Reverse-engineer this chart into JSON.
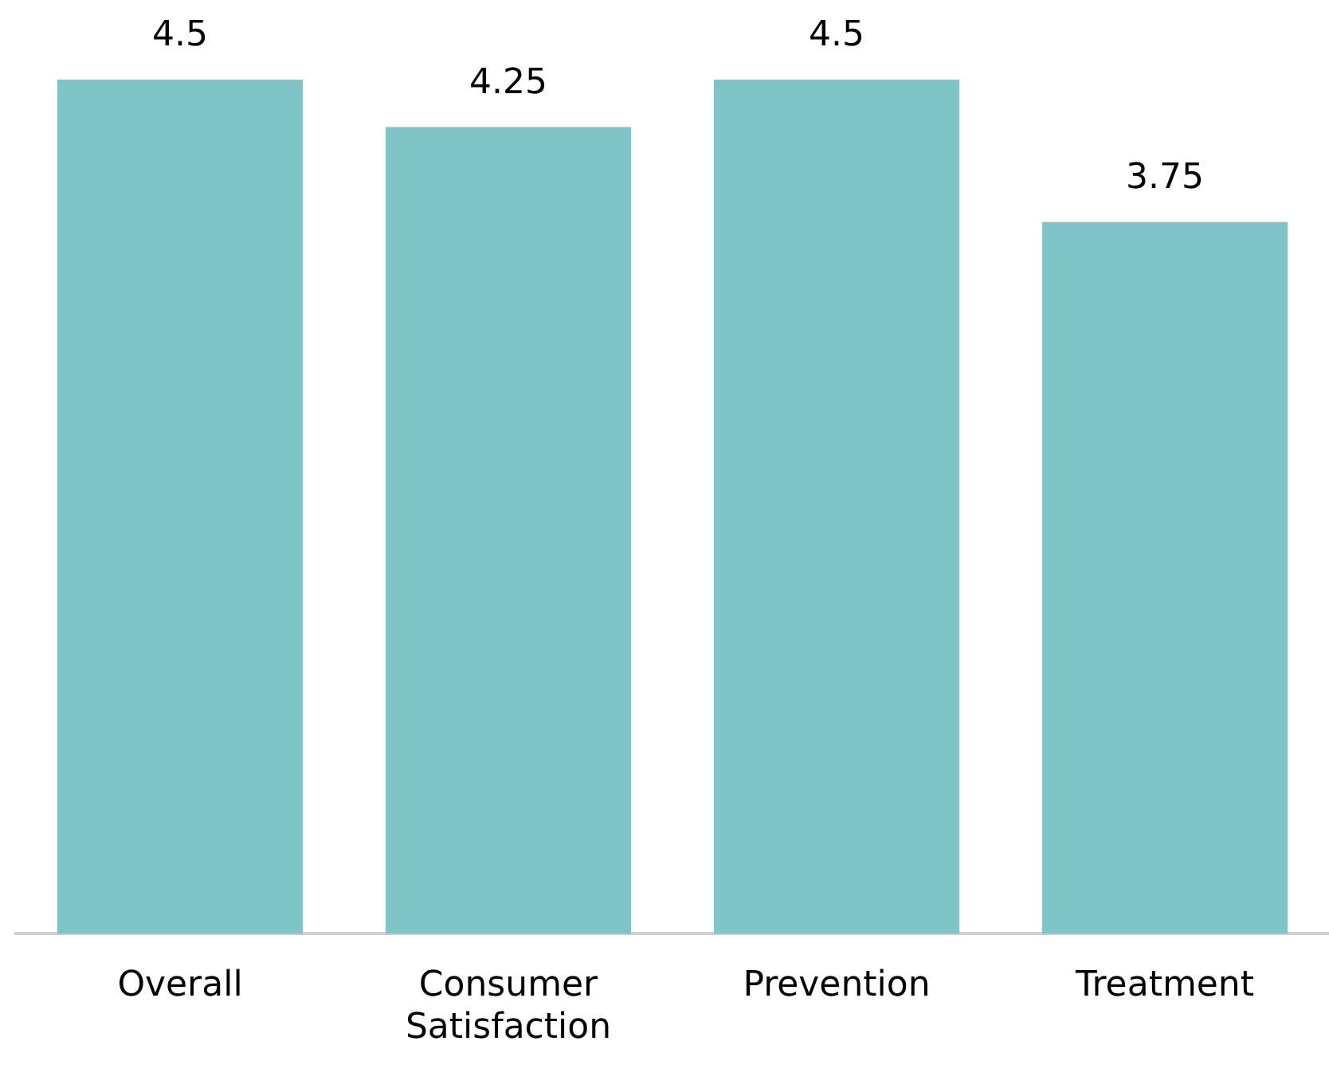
{
  "chart_data": {
    "type": "bar",
    "categories": [
      "Overall",
      "Consumer Satisfaction",
      "Prevention",
      "Treatment"
    ],
    "values": [
      4.5,
      4.25,
      4.5,
      3.75
    ],
    "color": "#7fc4c9",
    "data_labels": true,
    "grid": false,
    "legend": false,
    "tick_labels": "x"
  }
}
